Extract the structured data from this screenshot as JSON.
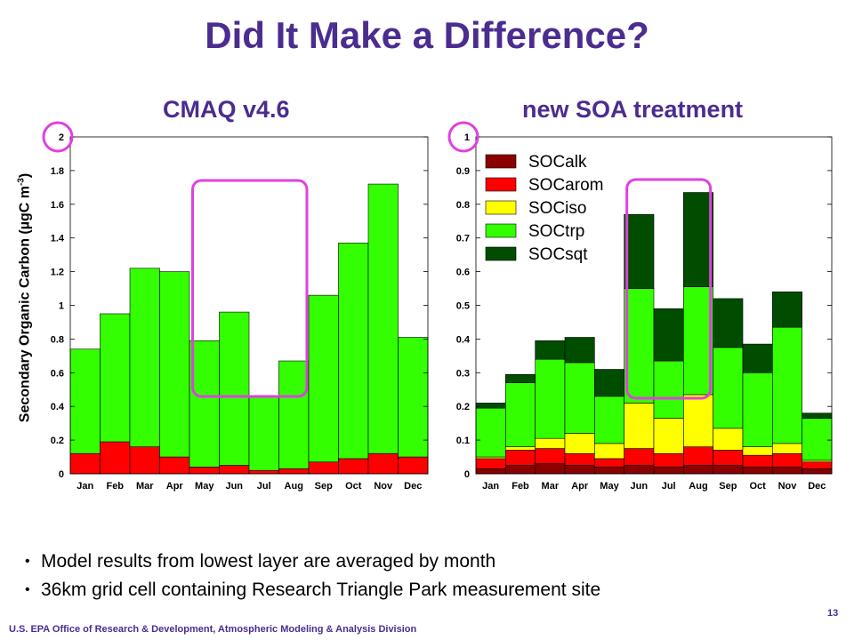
{
  "slide": {
    "title": "Did It Make a Difference?",
    "bullets": [
      "Model results from lowest layer are averaged by month",
      "36km grid cell containing Research Triangle Park measurement site"
    ],
    "footer": "U.S. EPA Office of Research & Development, Atmospheric Modeling & Analysis Division",
    "page_number": "13",
    "ylabel_main": "Secondary Organic Carbon (µgC m",
    "ylabel_sup": "-3",
    "ylabel_end": ")"
  },
  "colors": {
    "title": "#4B2C8F",
    "highlight": "#E040E0",
    "SOCalk": "#8B0000",
    "SOCarom": "#FF0000",
    "SOCiso": "#FFFF00",
    "SOCtrp": "#33FF00",
    "SOCsqt": "#004D00"
  },
  "chart_data": [
    {
      "type": "bar",
      "stacked": true,
      "title": "CMAQ v4.6",
      "ylabel": "Secondary Organic Carbon (µgC m-3)",
      "categories": [
        "Jan",
        "Feb",
        "Mar",
        "Apr",
        "May",
        "Jun",
        "Jul",
        "Aug",
        "Sep",
        "Oct",
        "Nov",
        "Dec"
      ],
      "ylim": [
        0,
        2
      ],
      "yticks": [
        0,
        0.2,
        0.4,
        0.6,
        0.8,
        1,
        1.2,
        1.4,
        1.6,
        1.8,
        2
      ],
      "series": [
        {
          "color": "#FF0000",
          "values": [
            0.12,
            0.19,
            0.16,
            0.1,
            0.04,
            0.05,
            0.02,
            0.03,
            0.07,
            0.09,
            0.12,
            0.1
          ]
        },
        {
          "color": "#33FF00",
          "values": [
            0.62,
            0.76,
            1.06,
            1.1,
            0.75,
            0.91,
            0.44,
            0.64,
            0.99,
            1.28,
            1.6,
            0.71
          ]
        }
      ],
      "highlighted_months": [
        "Jun",
        "Jul",
        "Aug"
      ]
    },
    {
      "type": "bar",
      "stacked": true,
      "title": "new SOA treatment",
      "categories": [
        "Jan",
        "Feb",
        "Mar",
        "Apr",
        "May",
        "Jun",
        "Jul",
        "Aug",
        "Sep",
        "Oct",
        "Nov",
        "Dec"
      ],
      "ylim": [
        0,
        1
      ],
      "yticks": [
        0,
        0.1,
        0.2,
        0.3,
        0.4,
        0.5,
        0.6,
        0.7,
        0.8,
        0.9,
        1
      ],
      "legend_position": "top-left",
      "series": [
        {
          "name": "SOCalk",
          "color": "#8B0000",
          "values": [
            0.015,
            0.025,
            0.03,
            0.025,
            0.02,
            0.025,
            0.02,
            0.025,
            0.025,
            0.02,
            0.02,
            0.015
          ]
        },
        {
          "name": "SOCarom",
          "color": "#FF0000",
          "values": [
            0.03,
            0.045,
            0.045,
            0.035,
            0.025,
            0.05,
            0.04,
            0.055,
            0.045,
            0.035,
            0.04,
            0.02
          ]
        },
        {
          "name": "SOCiso",
          "color": "#FFFF00",
          "values": [
            0.005,
            0.01,
            0.03,
            0.06,
            0.045,
            0.135,
            0.105,
            0.155,
            0.065,
            0.025,
            0.03,
            0.005
          ]
        },
        {
          "name": "SOCtrp",
          "color": "#33FF00",
          "values": [
            0.145,
            0.19,
            0.235,
            0.21,
            0.14,
            0.34,
            0.17,
            0.32,
            0.24,
            0.22,
            0.345,
            0.125
          ]
        },
        {
          "name": "SOCsqt",
          "color": "#004D00",
          "values": [
            0.015,
            0.025,
            0.055,
            0.075,
            0.08,
            0.22,
            0.155,
            0.28,
            0.145,
            0.085,
            0.105,
            0.015
          ]
        }
      ],
      "highlighted_months": [
        "Jun",
        "Jul",
        "Aug"
      ]
    }
  ]
}
